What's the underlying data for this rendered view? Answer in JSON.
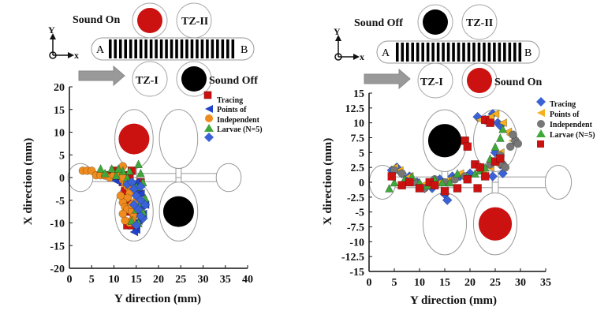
{
  "colors": {
    "red": "#cc1111",
    "blue": "#2244cc",
    "orange": "#f08c1e",
    "green": "#3fa83a",
    "diamond_blue": "#3a62d6",
    "gray": "#777777",
    "yellow": "#f5b020",
    "black": "#000000",
    "chamber_outline": "#999999"
  },
  "left_panel": {
    "schematic": {
      "sound_top": "Sound On",
      "sound_bottom": "Sound Off",
      "zone_top": "TZ-II",
      "zone_bottom": "TZ-I",
      "end_left": "A",
      "end_right": "B",
      "axis_y": "Y",
      "axis_x": "x"
    },
    "legend_lines": [
      "Tracing",
      "Points of",
      "Independent",
      "Larvae (N=5)"
    ]
  },
  "right_panel": {
    "schematic": {
      "sound_top": "Sound Off",
      "sound_bottom": "Sound On",
      "zone_top": "TZ-II",
      "zone_bottom": "TZ-I",
      "end_left": "A",
      "end_right": "B",
      "axis_y": "Y",
      "axis_x": "x"
    },
    "legend_lines": [
      "Tracing",
      "Points of",
      "Independent",
      "Larvae (N=5)"
    ]
  },
  "chart_data": [
    {
      "type": "scatter",
      "xlabel": "Y direction  (mm)",
      "ylabel": "X direction (mm)",
      "xlim": [
        0,
        40
      ],
      "ylim": [
        -20,
        20
      ],
      "xticks": [
        "0",
        "5",
        "10",
        "15",
        "20",
        "25",
        "30",
        "35",
        "40"
      ],
      "yticks": [
        "20",
        "15",
        "10",
        "5",
        "0",
        "-5",
        "-10",
        "-15",
        "-20"
      ],
      "sound_circles": [
        {
          "x": 14.5,
          "y": 8.5,
          "color": "#cc1111"
        },
        {
          "x": 24.5,
          "y": -7.5,
          "color": "#000000"
        }
      ],
      "series": [
        {
          "marker": "square",
          "color": "#cc1111",
          "points": [
            [
              8.5,
              0.5
            ],
            [
              10,
              1.5
            ],
            [
              11,
              0
            ],
            [
              12,
              -1
            ],
            [
              12.5,
              -3
            ],
            [
              13,
              -5
            ],
            [
              13.5,
              -7.5
            ],
            [
              13,
              -10.5
            ],
            [
              14,
              -10.5
            ],
            [
              14.5,
              -8
            ],
            [
              15,
              -6
            ],
            [
              15.5,
              -3
            ],
            [
              16,
              -1
            ],
            [
              13.5,
              0.5
            ],
            [
              12,
              0.5
            ],
            [
              14,
              1.5
            ]
          ]
        },
        {
          "marker": "triangle-left",
          "color": "#2244cc",
          "points": [
            [
              10,
              -0.5
            ],
            [
              11,
              -1
            ],
            [
              12.5,
              -1.5
            ],
            [
              14,
              -2
            ],
            [
              15,
              -3
            ],
            [
              15.5,
              -4.5
            ],
            [
              16,
              -6.5
            ],
            [
              16.5,
              -8
            ],
            [
              15.5,
              -9.5
            ],
            [
              15,
              -11.5
            ],
            [
              14.5,
              -12
            ],
            [
              16.5,
              -5
            ],
            [
              15,
              -1
            ],
            [
              13.5,
              -2.5
            ],
            [
              17,
              -6
            ],
            [
              16,
              -3.5
            ]
          ]
        },
        {
          "marker": "circle",
          "color": "#f08c1e",
          "points": [
            [
              3,
              1.5
            ],
            [
              4,
              1.5
            ],
            [
              5,
              1.5
            ],
            [
              6,
              0.5
            ],
            [
              7,
              0.5
            ],
            [
              8,
              0.5
            ],
            [
              9,
              0
            ],
            [
              10,
              0.5
            ],
            [
              11,
              0.5
            ],
            [
              12,
              -0.5
            ],
            [
              12.5,
              -1.5
            ],
            [
              13,
              -2
            ],
            [
              13.5,
              -2.5
            ],
            [
              13.5,
              -3.5
            ],
            [
              13,
              -4.5
            ],
            [
              12,
              -5.5
            ],
            [
              12.5,
              -6.5
            ],
            [
              13,
              -7
            ],
            [
              14,
              -7.5
            ],
            [
              14.5,
              -8.5
            ],
            [
              14,
              -9.5
            ],
            [
              13.5,
              -10
            ],
            [
              12.5,
              -9.5
            ],
            [
              12,
              -8
            ],
            [
              11.5,
              -4
            ],
            [
              13,
              -1
            ],
            [
              12,
              2.5
            ],
            [
              14,
              -6
            ],
            [
              15,
              -5
            ],
            [
              12,
              0
            ]
          ]
        },
        {
          "marker": "triangle-up",
          "color": "#3fa83a",
          "points": [
            [
              7,
              2
            ],
            [
              8,
              1
            ],
            [
              9.5,
              2
            ],
            [
              10.5,
              0.5
            ],
            [
              12,
              1.5
            ],
            [
              13,
              0
            ],
            [
              14,
              -1
            ],
            [
              15,
              -2
            ],
            [
              15.5,
              3
            ],
            [
              16,
              1
            ],
            [
              16.5,
              -1
            ],
            [
              17,
              -4.5
            ],
            [
              16,
              -8
            ],
            [
              15,
              -7
            ],
            [
              14,
              -9.5
            ],
            [
              15.5,
              -10
            ],
            [
              16.5,
              -7.5
            ],
            [
              16,
              -5.5
            ],
            [
              13.5,
              1.5
            ],
            [
              11,
              2
            ]
          ]
        },
        {
          "marker": "diamond",
          "color": "#3a62d6",
          "points": [
            [
              13,
              -1.5
            ],
            [
              14.5,
              -2.5
            ],
            [
              15,
              -4
            ],
            [
              16,
              -5
            ],
            [
              15.5,
              -7
            ],
            [
              16.5,
              -9
            ],
            [
              15,
              -10.5
            ],
            [
              14,
              -1
            ],
            [
              16,
              -2
            ],
            [
              17,
              -6
            ],
            [
              16,
              -8.5
            ],
            [
              14.5,
              -6
            ]
          ]
        }
      ]
    },
    {
      "type": "scatter",
      "xlabel": "Y direction  (mm)",
      "ylabel": "X direction (mm)",
      "xlim": [
        0,
        35
      ],
      "ylim": [
        -15,
        15
      ],
      "xticks": [
        "0",
        "5",
        "10",
        "15",
        "20",
        "25",
        "30",
        "35"
      ],
      "yticks": [
        "15",
        "12.5",
        "10",
        "7.5",
        "5",
        "2.5",
        "0",
        "-2.5",
        "-5",
        "-7.5",
        "-10",
        "-12.5",
        "-15"
      ],
      "sound_circles": [
        {
          "x": 15,
          "y": 7,
          "color": "#000000"
        },
        {
          "x": 25,
          "y": -7,
          "color": "#cc1111"
        }
      ],
      "series": [
        {
          "marker": "diamond",
          "color": "#3a62d6",
          "points": [
            [
              4.5,
              2
            ],
            [
              5.5,
              2.5
            ],
            [
              6.5,
              1.5
            ],
            [
              8,
              1
            ],
            [
              9.5,
              0
            ],
            [
              11,
              -1
            ],
            [
              12.5,
              -1
            ],
            [
              14,
              0.5
            ],
            [
              15,
              -2
            ],
            [
              15.5,
              -3
            ],
            [
              16.5,
              1
            ],
            [
              18,
              1
            ],
            [
              20,
              1.5
            ],
            [
              21.5,
              11
            ],
            [
              23,
              10.5
            ],
            [
              24.5,
              11.5
            ],
            [
              25.5,
              10
            ],
            [
              26,
              9.5
            ],
            [
              25,
              5
            ],
            [
              26,
              3
            ],
            [
              24.5,
              1
            ],
            [
              26.5,
              1.5
            ]
          ]
        },
        {
          "marker": "triangle-left",
          "color": "#f5b020",
          "points": [
            [
              5,
              2.5
            ],
            [
              6,
              2
            ],
            [
              8,
              1
            ],
            [
              10.5,
              -0.5
            ],
            [
              12,
              -0.5
            ],
            [
              14,
              0
            ],
            [
              16,
              0.5
            ],
            [
              18,
              1.5
            ],
            [
              22,
              10.5
            ],
            [
              24,
              11
            ],
            [
              25,
              11.5
            ],
            [
              26.5,
              10
            ],
            [
              27.5,
              8.5
            ],
            [
              28,
              8
            ],
            [
              28.5,
              7
            ],
            [
              26,
              5
            ],
            [
              25.5,
              3
            ],
            [
              24,
              2.5
            ],
            [
              22.5,
              2
            ]
          ]
        },
        {
          "marker": "circle",
          "color": "#777777",
          "points": [
            [
              5,
              2
            ],
            [
              6.5,
              1.5
            ],
            [
              9,
              0
            ],
            [
              11,
              -1
            ],
            [
              13,
              0.5
            ],
            [
              15,
              0
            ],
            [
              17,
              0.5
            ],
            [
              19,
              1
            ],
            [
              22,
              2.5
            ],
            [
              24,
              3
            ],
            [
              25,
              3.5
            ],
            [
              26,
              4.5
            ],
            [
              26.5,
              3
            ],
            [
              27,
              2.5
            ],
            [
              28,
              6
            ],
            [
              29,
              7
            ],
            [
              29.5,
              6.5
            ],
            [
              28.5,
              8
            ]
          ]
        },
        {
          "marker": "triangle-up",
          "color": "#3fa83a",
          "points": [
            [
              4,
              -1
            ],
            [
              5,
              0
            ],
            [
              7,
              0.5
            ],
            [
              8.5,
              1
            ],
            [
              10,
              0
            ],
            [
              11.5,
              -0.5
            ],
            [
              13,
              0.5
            ],
            [
              14.5,
              0
            ],
            [
              16,
              0
            ],
            [
              17.5,
              1.5
            ],
            [
              19.5,
              1
            ],
            [
              21,
              1.5
            ],
            [
              23,
              2.5
            ],
            [
              25,
              6
            ],
            [
              26,
              7.5
            ],
            [
              26.5,
              9
            ],
            [
              24,
              4
            ],
            [
              22,
              2
            ]
          ]
        },
        {
          "marker": "square",
          "color": "#cc1111",
          "points": [
            [
              4.5,
              1
            ],
            [
              6.5,
              -0.5
            ],
            [
              8,
              0
            ],
            [
              10,
              -1
            ],
            [
              12,
              0
            ],
            [
              13,
              -0.5
            ],
            [
              15,
              -1.5
            ],
            [
              17.5,
              -1
            ],
            [
              19,
              7
            ],
            [
              19.5,
              6
            ],
            [
              21,
              3
            ],
            [
              22,
              2.5
            ],
            [
              23,
              10.5
            ],
            [
              24,
              10
            ],
            [
              25,
              3.5
            ],
            [
              26,
              4
            ],
            [
              23,
              1
            ],
            [
              21.5,
              -1
            ],
            [
              19.5,
              0.5
            ]
          ]
        }
      ]
    }
  ]
}
